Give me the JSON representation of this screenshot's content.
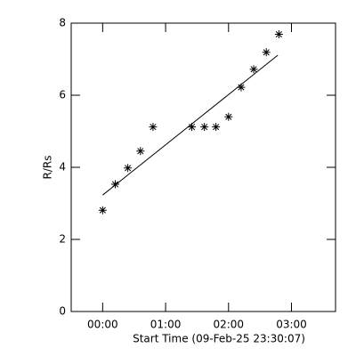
{
  "chart_data": {
    "type": "scatter",
    "x_label": "Start Time (09-Feb-25 23:30:07)",
    "y_label": "R/Rs",
    "x": [
      0,
      12,
      24,
      36,
      48,
      85,
      97,
      108,
      120,
      132,
      144,
      156,
      168
    ],
    "values": [
      2.81,
      3.53,
      3.98,
      4.45,
      5.12,
      5.12,
      5.12,
      5.12,
      5.4,
      6.22,
      6.72,
      7.19,
      7.69
    ],
    "color": "#000000",
    "fit": {
      "x": [
        0,
        167
      ],
      "values": [
        3.23,
        7.11
      ]
    },
    "xlim": [
      -30,
      222
    ],
    "xticks": [
      {
        "value": 0,
        "label": "00:00"
      },
      {
        "value": 60,
        "label": "01:00"
      },
      {
        "value": 120,
        "label": "02:00"
      },
      {
        "value": 180,
        "label": "03:00"
      }
    ],
    "ylim": [
      0,
      8
    ],
    "yticks": [
      0,
      2,
      4,
      6,
      8
    ]
  }
}
